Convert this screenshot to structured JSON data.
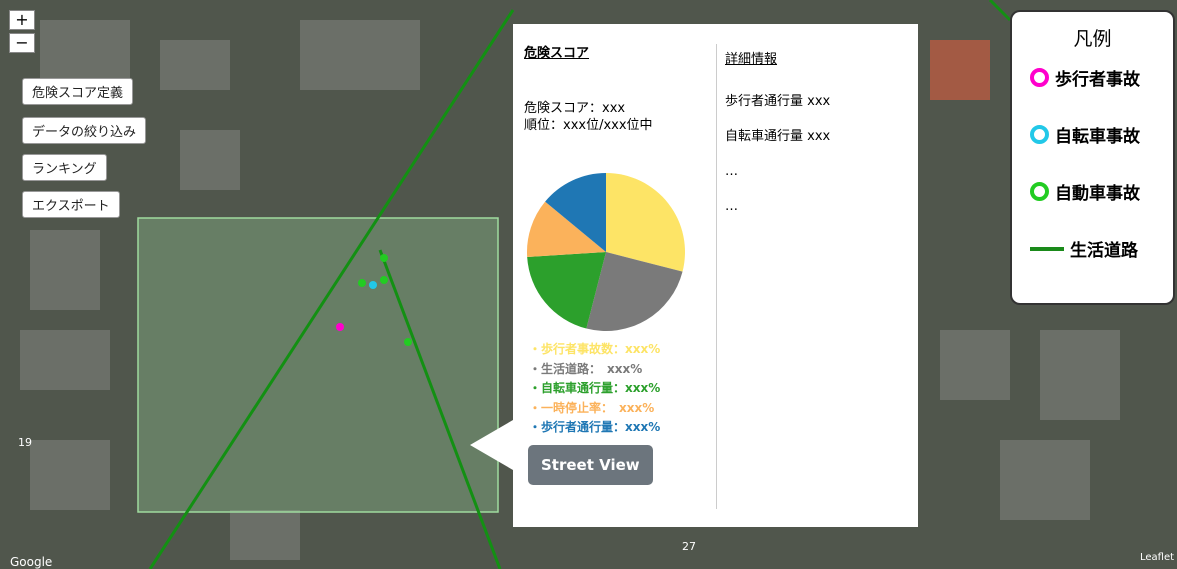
{
  "zoom": {
    "in": "+",
    "out": "−"
  },
  "sidebar": {
    "buttons": [
      "危険スコア定義",
      "データの絞り込み",
      "ランキング",
      "エクスポート"
    ]
  },
  "popup": {
    "score_title": "危険スコア",
    "score_lines": [
      "危険スコア：xxx",
      "順位：xxx位/xxx位中"
    ],
    "pie": {
      "values": [
        29,
        25,
        20,
        12,
        14
      ],
      "colors": [
        "#fde466",
        "#7a7a7a",
        "#2ca02c",
        "#fbb25b",
        "#1f77b4"
      ]
    },
    "pie_legend": [
      "・歩行者事故数：xxx%",
      "・生活道路：　xxx%",
      "・自転車通行量：xxx%",
      "・一時停止率：　xxx%",
      "・歩行者通行量：xxx%"
    ],
    "button": "Street View",
    "details_title": "詳細情報",
    "details": [
      "歩行者通行量  xxx",
      "自転車通行量  xxx",
      "…",
      "…"
    ]
  },
  "legend": {
    "title": "凡例",
    "items": [
      {
        "label": "歩行者事故",
        "color": "#ff00cc"
      },
      {
        "label": "自転車事故",
        "color": "#22c8e8"
      },
      {
        "label": "自動車事故",
        "color": "#22cc22"
      },
      {
        "label": "生活道路",
        "color": "#1a8a1a"
      }
    ]
  },
  "map": {
    "labels": [
      "19",
      "27"
    ],
    "attribution": "Google",
    "leaflet": "Leaflet"
  }
}
